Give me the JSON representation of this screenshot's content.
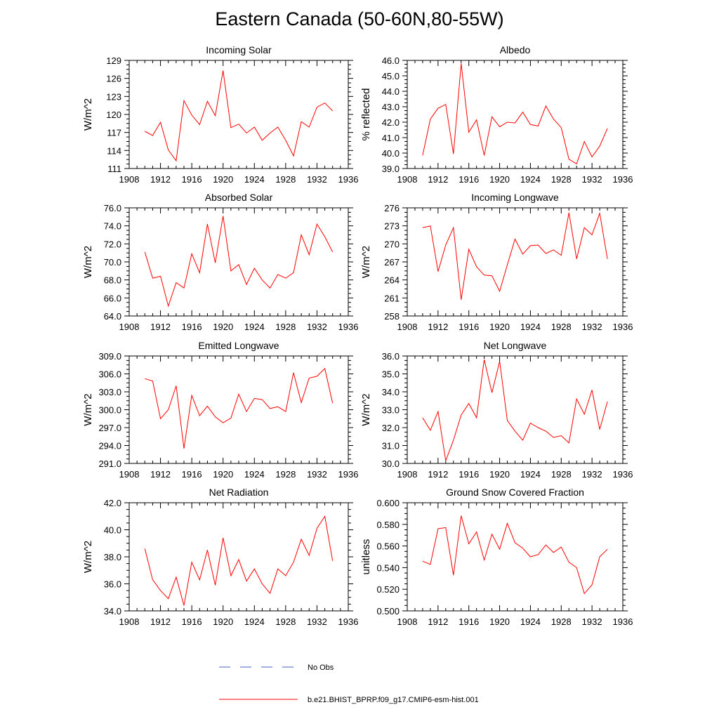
{
  "page": {
    "title": "Eastern Canada (50-60N,80-55W)"
  },
  "legend": {
    "entries": [
      {
        "label": "No Obs",
        "style": "dashed",
        "color": "#4a5fc1"
      },
      {
        "label": "b.e21.BHIST_BPRP.f09_g17.CMIP6-esm-hist.001",
        "style": "solid",
        "color": "#ff0000"
      }
    ]
  },
  "colors": {
    "series": "#ff0000",
    "axis": "#000000"
  },
  "chart_data": [
    {
      "type": "line",
      "title": "Incoming Solar",
      "ylabel": "W/m^2",
      "xlabel": "",
      "xlim": [
        1908,
        1936
      ],
      "xticks": [
        "1908",
        "1912",
        "1916",
        "1920",
        "1924",
        "1928",
        "1932",
        "1936"
      ],
      "ylim": [
        111,
        129
      ],
      "yticks": [
        "111",
        "114",
        "117",
        "120",
        "123",
        "126",
        "129"
      ],
      "x": [
        1910,
        1911,
        1912,
        1913,
        1914,
        1915,
        1916,
        1917,
        1918,
        1919,
        1920,
        1921,
        1922,
        1923,
        1924,
        1925,
        1926,
        1927,
        1928,
        1929,
        1930,
        1931,
        1932,
        1933,
        1934
      ],
      "values": [
        117.2,
        116.5,
        118.7,
        114.1,
        112.3,
        122.3,
        119.9,
        118.3,
        122.2,
        119.8,
        127.3,
        117.8,
        118.4,
        116.9,
        117.9,
        115.7,
        116.9,
        117.9,
        115.7,
        113.1,
        118.8,
        117.9,
        121.2,
        121.9,
        120.6
      ]
    },
    {
      "type": "line",
      "title": "Albedo",
      "ylabel": "% reflected",
      "xlabel": "",
      "xlim": [
        1908,
        1936
      ],
      "xticks": [
        "1908",
        "1912",
        "1916",
        "1920",
        "1924",
        "1928",
        "1932",
        "1936"
      ],
      "ylim": [
        39.0,
        46.0
      ],
      "yticks": [
        "39.0",
        "40.0",
        "41.0",
        "42.0",
        "43.0",
        "44.0",
        "45.0",
        "46.0"
      ],
      "x": [
        1910,
        1911,
        1912,
        1913,
        1914,
        1915,
        1916,
        1917,
        1918,
        1919,
        1920,
        1921,
        1922,
        1923,
        1924,
        1925,
        1926,
        1927,
        1928,
        1929,
        1930,
        1931,
        1932,
        1933,
        1934
      ],
      "values": [
        39.85,
        42.2,
        42.9,
        43.15,
        39.95,
        45.8,
        41.35,
        42.15,
        39.85,
        42.35,
        41.7,
        42.0,
        41.95,
        42.65,
        41.85,
        41.75,
        43.05,
        42.2,
        41.65,
        39.6,
        39.3,
        40.75,
        39.75,
        40.45,
        41.6
      ]
    },
    {
      "type": "line",
      "title": "Absorbed Solar",
      "ylabel": "W/m^2",
      "xlabel": "",
      "xlim": [
        1908,
        1936
      ],
      "xticks": [
        "1908",
        "1912",
        "1916",
        "1920",
        "1924",
        "1928",
        "1932",
        "1936"
      ],
      "ylim": [
        64.0,
        76.0
      ],
      "yticks": [
        "64.0",
        "66.0",
        "68.0",
        "70.0",
        "72.0",
        "74.0",
        "76.0"
      ],
      "x": [
        1910,
        1911,
        1912,
        1913,
        1914,
        1915,
        1916,
        1917,
        1918,
        1919,
        1920,
        1921,
        1922,
        1923,
        1924,
        1925,
        1926,
        1927,
        1928,
        1929,
        1930,
        1931,
        1932,
        1933,
        1934
      ],
      "values": [
        71.1,
        68.2,
        68.4,
        65.1,
        67.7,
        67.1,
        70.9,
        68.8,
        74.2,
        69.9,
        75.1,
        69.0,
        69.7,
        67.5,
        69.3,
        68.0,
        67.1,
        68.6,
        68.2,
        68.8,
        73.0,
        70.8,
        74.2,
        72.8,
        71.1
      ]
    },
    {
      "type": "line",
      "title": "Incoming Longwave",
      "ylabel": "W/m^2",
      "xlabel": "",
      "xlim": [
        1908,
        1936
      ],
      "xticks": [
        "1908",
        "1912",
        "1916",
        "1920",
        "1924",
        "1928",
        "1932",
        "1936"
      ],
      "ylim": [
        258,
        276
      ],
      "yticks": [
        "258",
        "261",
        "264",
        "267",
        "270",
        "273",
        "276"
      ],
      "x": [
        1910,
        1911,
        1912,
        1913,
        1914,
        1915,
        1916,
        1917,
        1918,
        1919,
        1920,
        1921,
        1922,
        1923,
        1924,
        1925,
        1926,
        1927,
        1928,
        1929,
        1930,
        1931,
        1932,
        1933,
        1934
      ],
      "values": [
        272.7,
        273.0,
        265.4,
        269.8,
        272.7,
        260.7,
        269.1,
        266.2,
        264.8,
        264.7,
        262.1,
        266.5,
        270.8,
        268.3,
        269.7,
        269.8,
        268.4,
        269.0,
        268.1,
        275.2,
        267.5,
        272.7,
        271.5,
        275.1,
        267.5
      ]
    },
    {
      "type": "line",
      "title": "Emitted Longwave",
      "ylabel": "W/m^2",
      "xlabel": "",
      "xlim": [
        1908,
        1936
      ],
      "xticks": [
        "1908",
        "1912",
        "1916",
        "1920",
        "1924",
        "1928",
        "1932",
        "1936"
      ],
      "ylim": [
        291.0,
        309.0
      ],
      "yticks": [
        "291.0",
        "294.0",
        "297.0",
        "300.0",
        "303.0",
        "306.0",
        "309.0"
      ],
      "x": [
        1910,
        1911,
        1912,
        1913,
        1914,
        1915,
        1916,
        1917,
        1918,
        1919,
        1920,
        1921,
        1922,
        1923,
        1924,
        1925,
        1926,
        1927,
        1928,
        1929,
        1930,
        1931,
        1932,
        1933,
        1934
      ],
      "values": [
        305.2,
        304.8,
        298.5,
        300.0,
        304.0,
        293.5,
        302.4,
        299.0,
        300.6,
        298.8,
        297.8,
        298.6,
        302.6,
        299.7,
        301.9,
        301.7,
        300.2,
        300.5,
        299.7,
        306.2,
        301.2,
        305.3,
        305.6,
        306.9,
        301.1
      ]
    },
    {
      "type": "line",
      "title": "Net Longwave",
      "ylabel": "W/m^2",
      "xlabel": "",
      "xlim": [
        1908,
        1936
      ],
      "xticks": [
        "1908",
        "1912",
        "1916",
        "1920",
        "1924",
        "1928",
        "1932",
        "1936"
      ],
      "ylim": [
        30.0,
        36.0
      ],
      "yticks": [
        "30.0",
        "31.0",
        "32.0",
        "33.0",
        "34.0",
        "35.0",
        "36.0"
      ],
      "x": [
        1910,
        1911,
        1912,
        1913,
        1914,
        1915,
        1916,
        1917,
        1918,
        1919,
        1920,
        1921,
        1922,
        1923,
        1924,
        1925,
        1926,
        1927,
        1928,
        1929,
        1930,
        1931,
        1932,
        1933,
        1934
      ],
      "values": [
        32.55,
        31.85,
        32.9,
        30.15,
        31.3,
        32.7,
        33.35,
        32.55,
        35.8,
        33.95,
        35.7,
        32.4,
        31.8,
        31.3,
        32.25,
        32.0,
        31.8,
        31.45,
        31.55,
        31.15,
        33.6,
        32.75,
        34.1,
        31.9,
        33.45
      ]
    },
    {
      "type": "line",
      "title": "Net Radiation",
      "ylabel": "W/m^2",
      "xlabel": "",
      "xlim": [
        1908,
        1936
      ],
      "xticks": [
        "1908",
        "1912",
        "1916",
        "1920",
        "1924",
        "1928",
        "1932",
        "1936"
      ],
      "ylim": [
        34.0,
        42.0
      ],
      "yticks": [
        "34.0",
        "36.0",
        "38.0",
        "40.0",
        "42.0"
      ],
      "x": [
        1910,
        1911,
        1912,
        1913,
        1914,
        1915,
        1916,
        1917,
        1918,
        1919,
        1920,
        1921,
        1922,
        1923,
        1924,
        1925,
        1926,
        1927,
        1928,
        1929,
        1930,
        1931,
        1932,
        1933,
        1934
      ],
      "values": [
        38.6,
        36.3,
        35.5,
        34.9,
        36.5,
        34.4,
        37.6,
        36.3,
        38.5,
        35.9,
        39.4,
        36.6,
        37.8,
        36.2,
        37.1,
        36.0,
        35.3,
        37.1,
        36.6,
        37.6,
        39.3,
        38.1,
        40.1,
        41.0,
        37.7
      ]
    },
    {
      "type": "line",
      "title": "Ground Snow Covered Fraction",
      "ylabel": "unitless",
      "xlabel": "",
      "xlim": [
        1908,
        1936
      ],
      "xticks": [
        "1908",
        "1912",
        "1916",
        "1920",
        "1924",
        "1928",
        "1932",
        "1936"
      ],
      "ylim": [
        0.5,
        0.6
      ],
      "yticks": [
        "0.500",
        "0.520",
        "0.540",
        "0.560",
        "0.580",
        "0.600"
      ],
      "x": [
        1910,
        1911,
        1912,
        1913,
        1914,
        1915,
        1916,
        1917,
        1918,
        1919,
        1920,
        1921,
        1922,
        1923,
        1924,
        1925,
        1926,
        1927,
        1928,
        1929,
        1930,
        1931,
        1932,
        1933,
        1934
      ],
      "values": [
        0.546,
        0.543,
        0.576,
        0.577,
        0.533,
        0.588,
        0.562,
        0.573,
        0.547,
        0.571,
        0.557,
        0.581,
        0.563,
        0.558,
        0.55,
        0.552,
        0.561,
        0.554,
        0.559,
        0.545,
        0.54,
        0.516,
        0.524,
        0.55,
        0.557
      ]
    }
  ]
}
